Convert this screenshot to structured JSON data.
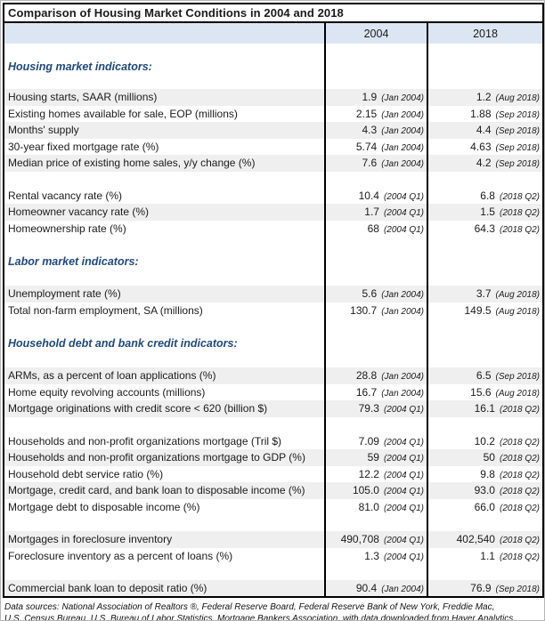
{
  "figure": {
    "footnote_line1": "Data sources: National Association of Realtors ®, Federal Reserve Board, Federal Reserve Bank of New York, Freddie Mac,",
    "footnote_line2": "U.S. Census Bureau, U.S. Bureau of Labor Statistics, Mortgage Bankers Association, with data downloaded from Haver Analytics."
  },
  "colors": {
    "header_fill": "#dce6f2",
    "stripe_fill": "#efefef",
    "section_text": "#1f497d",
    "border": "#000000"
  },
  "chart_data": {
    "type": "table",
    "title": "Comparison of Housing Market Conditions in 2004 and 2018",
    "columns": [
      "Indicator",
      "2004",
      "2018"
    ],
    "rows": [
      {
        "type": "section",
        "label": "Housing market indicators:"
      },
      {
        "type": "data",
        "label": "Housing starts, SAAR (millions)",
        "v2004": "1.9",
        "d2004": "(Jan 2004)",
        "v2018": "1.2",
        "d2018": "(Aug 2018)"
      },
      {
        "type": "data",
        "label": "Existing homes available for sale, EOP (millions)",
        "v2004": "2.15",
        "d2004": "(Jan 2004)",
        "v2018": "1.88",
        "d2018": "(Sep 2018)"
      },
      {
        "type": "data",
        "label": "Months' supply",
        "v2004": "4.3",
        "d2004": "(Jan 2004)",
        "v2018": "4.4",
        "d2018": "(Sep 2018)"
      },
      {
        "type": "data",
        "label": "30-year fixed mortgage rate (%)",
        "v2004": "5.74",
        "d2004": "(Jan 2004)",
        "v2018": "4.63",
        "d2018": "(Sep 2018)"
      },
      {
        "type": "data",
        "label": "Median price of existing home sales, y/y change (%)",
        "v2004": "7.6",
        "d2004": "(Jan 2004)",
        "v2018": "4.2",
        "d2018": "(Sep 2018)"
      },
      {
        "type": "spacer"
      },
      {
        "type": "data",
        "label": "Rental vacancy rate (%)",
        "v2004": "10.4",
        "d2004": "(2004 Q1)",
        "v2018": "6.8",
        "d2018": "(2018 Q2)"
      },
      {
        "type": "data",
        "label": "Homeowner vacancy rate (%)",
        "v2004": "1.7",
        "d2004": "(2004 Q1)",
        "v2018": "1.5",
        "d2018": "(2018 Q2)"
      },
      {
        "type": "data",
        "label": "Homeownership rate (%)",
        "v2004": "68",
        "d2004": "(2004 Q1)",
        "v2018": "64.3",
        "d2018": "(2018 Q2)"
      },
      {
        "type": "section",
        "label": "Labor market indicators:"
      },
      {
        "type": "data",
        "label": "Unemployment rate (%)",
        "v2004": "5.6",
        "d2004": "(Jan 2004)",
        "v2018": "3.7",
        "d2018": "(Aug 2018)"
      },
      {
        "type": "data",
        "label": "Total non-farm employment, SA (millions)",
        "v2004": "130.7",
        "d2004": "(Jan 2004)",
        "v2018": "149.5",
        "d2018": "(Aug 2018)"
      },
      {
        "type": "section",
        "label": "Household debt and bank credit indicators:"
      },
      {
        "type": "data",
        "label": "ARMs, as a percent of loan applications (%)",
        "v2004": "28.8",
        "d2004": "(Jan 2004)",
        "v2018": "6.5",
        "d2018": "(Sep 2018)"
      },
      {
        "type": "data",
        "label": "Home equity revolving accounts (millions)",
        "v2004": "16.7",
        "d2004": "(Jan 2004)",
        "v2018": "15.6",
        "d2018": "(Aug 2018)"
      },
      {
        "type": "data",
        "label": "Mortgage originations with credit score < 620 (billion $)",
        "v2004": "79.3",
        "d2004": "(2004 Q1)",
        "v2018": "16.1",
        "d2018": "(2018 Q2)"
      },
      {
        "type": "spacer"
      },
      {
        "type": "data",
        "label": "Households and non-profit organizations mortgage (Tril $)",
        "v2004": "7.09",
        "d2004": "(2004 Q1)",
        "v2018": "10.2",
        "d2018": "(2018 Q2)"
      },
      {
        "type": "data",
        "label": "Households and non-profit organizations mortgage to GDP (%)",
        "v2004": "59",
        "d2004": "(2004 Q1)",
        "v2018": "50",
        "d2018": "(2018 Q2)"
      },
      {
        "type": "data",
        "label": "Household debt service ratio (%)",
        "v2004": "12.2",
        "d2004": "(2004 Q1)",
        "v2018": "9.8",
        "d2018": "(2018 Q2)"
      },
      {
        "type": "data",
        "label": "Mortgage, credit card, and bank loan to disposable income (%)",
        "v2004": "105.0",
        "d2004": "(2004 Q1)",
        "v2018": "93.0",
        "d2018": "(2018 Q2)"
      },
      {
        "type": "data",
        "label": "Mortgage debt to disposable income (%)",
        "v2004": "81.0",
        "d2004": "(2004 Q1)",
        "v2018": "66.0",
        "d2018": "(2018 Q2)"
      },
      {
        "type": "spacer"
      },
      {
        "type": "data",
        "label": "Mortgages in foreclosure inventory",
        "v2004": "490,708",
        "d2004": "(2004 Q1)",
        "v2018": "402,540",
        "d2018": "(2018 Q2)"
      },
      {
        "type": "data",
        "label": "Foreclosure inventory as a percent of loans  (%)",
        "v2004": "1.3",
        "d2004": "(2004 Q1)",
        "v2018": "1.1",
        "d2018": "(2018 Q2)"
      },
      {
        "type": "spacer"
      },
      {
        "type": "data",
        "label": "Commercial bank loan to deposit ratio (%)",
        "v2004": "90.4",
        "d2004": "(Jan 2004)",
        "v2018": "76.9",
        "d2018": "(Sep 2018)"
      }
    ]
  }
}
